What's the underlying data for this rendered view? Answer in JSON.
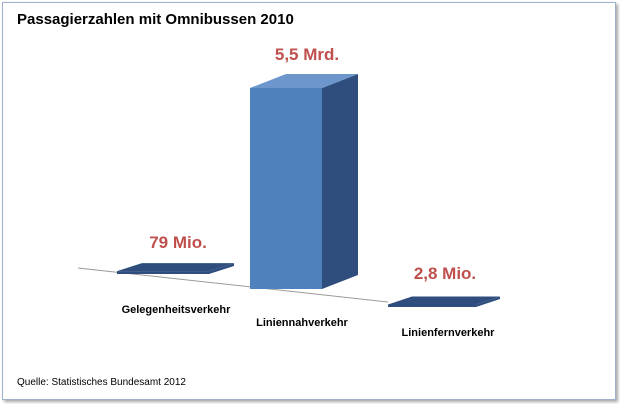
{
  "chart_data": {
    "type": "bar",
    "title": "Passagierzahlen mit Omnibussen 2010",
    "categories": [
      "Gelegenheitsverkehr",
      "Liniennahverkehr",
      "Linienfernverkehr"
    ],
    "values": [
      0.079,
      5.5,
      0.0028
    ],
    "unit": "Mrd. Passagiere",
    "value_labels": [
      "79 Mio.",
      "5,5 Mrd.",
      "2,8 Mio."
    ],
    "ylim": [
      0,
      5.5
    ],
    "grid": false,
    "legend": "none",
    "xlabel": "",
    "ylabel": ""
  },
  "source": "Quelle: Statistisches Bundesamt 2012",
  "colors": {
    "bar_front": "#4f81bd",
    "bar_side": "#2f4e7e",
    "bar_top": "#6d97cc",
    "label": "#c0504d",
    "frame": "#9fb1c9"
  }
}
